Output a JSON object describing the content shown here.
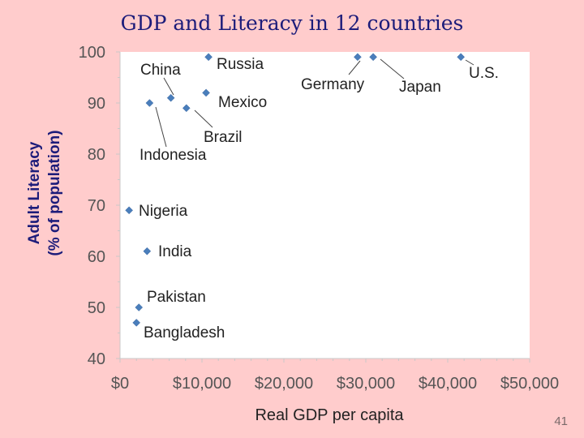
{
  "slide": {
    "title": "GDP and Literacy in 12 countries",
    "page_number": "41"
  },
  "chart_data": {
    "type": "scatter",
    "title": "GDP and Literacy in 12 countries",
    "xlabel": "Real GDP per capita",
    "ylabel_lines": [
      "Adult Literacy",
      "(% of population)"
    ],
    "xlim": [
      0,
      50000
    ],
    "ylim": [
      40,
      100
    ],
    "x_ticks": [
      0,
      10000,
      20000,
      30000,
      40000,
      50000
    ],
    "x_tick_labels": [
      "$0",
      "$10,000",
      "$20,000",
      "$30,000",
      "$40,000",
      "$50,000"
    ],
    "y_ticks": [
      40,
      50,
      60,
      70,
      80,
      90,
      100
    ],
    "y_tick_labels": [
      "40",
      "50",
      "60",
      "70",
      "80",
      "90",
      "100"
    ],
    "grid": false,
    "marker_color": "#4a7ebb",
    "points": [
      {
        "label": "China",
        "x": 6200,
        "y": 91
      },
      {
        "label": "Russia",
        "x": 10800,
        "y": 99
      },
      {
        "label": "Mexico",
        "x": 10500,
        "y": 92
      },
      {
        "label": "Brazil",
        "x": 8100,
        "y": 89
      },
      {
        "label": "Indonesia",
        "x": 3600,
        "y": 90
      },
      {
        "label": "Germany",
        "x": 29000,
        "y": 99
      },
      {
        "label": "Japan",
        "x": 30900,
        "y": 99
      },
      {
        "label": "U.S.",
        "x": 41600,
        "y": 99
      },
      {
        "label": "Nigeria",
        "x": 1100,
        "y": 69
      },
      {
        "label": "India",
        "x": 3300,
        "y": 61
      },
      {
        "label": "Pakistan",
        "x": 2300,
        "y": 50
      },
      {
        "label": "Bangladesh",
        "x": 2000,
        "y": 47
      }
    ]
  }
}
